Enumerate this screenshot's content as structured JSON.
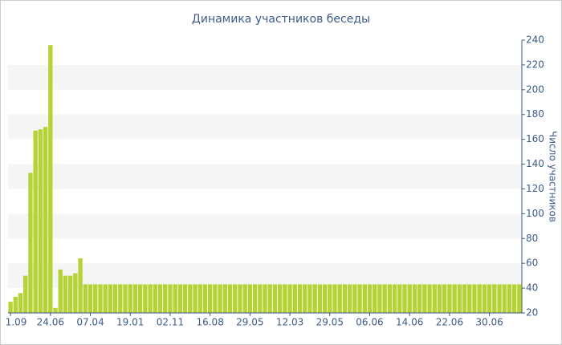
{
  "chart_data": {
    "type": "bar",
    "title": "Динамика участников беседы",
    "y_axis_label": "Число участников",
    "categories": [
      "1.09",
      null,
      null,
      null,
      null,
      null,
      null,
      null,
      "24.06",
      null,
      null,
      null,
      null,
      null,
      null,
      null,
      "07.04",
      null,
      null,
      null,
      null,
      null,
      null,
      null,
      "19.01",
      null,
      null,
      null,
      null,
      null,
      null,
      null,
      "02.11",
      null,
      null,
      null,
      null,
      null,
      null,
      null,
      "16.08",
      null,
      null,
      null,
      null,
      null,
      null,
      null,
      "29.05",
      null,
      null,
      null,
      null,
      null,
      null,
      null,
      "12.03",
      null,
      null,
      null,
      null,
      null,
      null,
      null,
      "29.05",
      null,
      null,
      null,
      null,
      null,
      null,
      null,
      "06.06",
      null,
      null,
      null,
      null,
      null,
      null,
      null,
      "14.06",
      null,
      null,
      null,
      null,
      null,
      null,
      null,
      "22.06",
      null,
      null,
      null,
      null,
      null,
      null,
      null,
      "30.06",
      null,
      null,
      null,
      null,
      null,
      null
    ],
    "values": [
      29,
      33,
      36,
      50,
      133,
      167,
      168,
      170,
      236,
      24,
      55,
      50,
      50,
      52,
      64,
      43,
      43,
      43,
      43,
      43,
      43,
      43,
      43,
      43,
      43,
      43,
      43,
      43,
      43,
      43,
      43,
      43,
      43,
      43,
      43,
      43,
      43,
      43,
      43,
      43,
      43,
      43,
      43,
      43,
      43,
      43,
      43,
      43,
      43,
      43,
      43,
      43,
      43,
      43,
      43,
      43,
      43,
      43,
      43,
      43,
      43,
      43,
      43,
      43,
      43,
      43,
      43,
      43,
      43,
      43,
      43,
      43,
      43,
      43,
      43,
      43,
      43,
      43,
      43,
      43,
      43,
      43,
      43,
      43,
      43,
      43,
      43,
      43,
      43,
      43,
      43,
      43,
      43,
      43,
      43,
      43,
      43,
      43,
      43,
      43,
      43,
      43,
      43
    ],
    "color": "#b5d334",
    "ylim": [
      20,
      240
    ],
    "yticks": [
      20,
      40,
      60,
      80,
      100,
      120,
      140,
      160,
      180,
      200,
      220,
      240
    ],
    "grid": true,
    "y_axis_side": "right"
  }
}
